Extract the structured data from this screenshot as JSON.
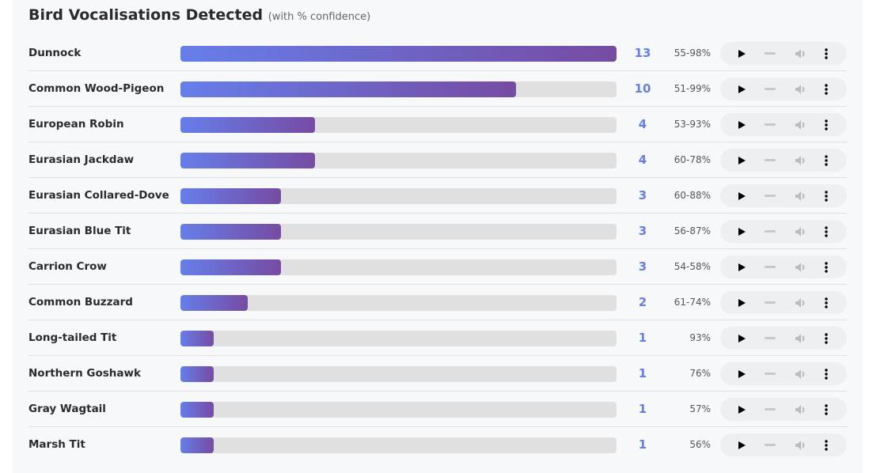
{
  "title": "Bird Vocalisations Detected",
  "subtitle": "(with % confidence)",
  "colors": {
    "bar_start": "#667eea",
    "bar_end": "#764ba2",
    "count": "#667eea"
  },
  "max_count": 13,
  "birds": [
    {
      "name": "Dunnock",
      "count": 13,
      "confidence": "55-98%"
    },
    {
      "name": "Common Wood-Pigeon",
      "count": 10,
      "confidence": "51-99%"
    },
    {
      "name": "European Robin",
      "count": 4,
      "confidence": "53-93%"
    },
    {
      "name": "Eurasian Jackdaw",
      "count": 4,
      "confidence": "60-78%"
    },
    {
      "name": "Eurasian Collared-Dove",
      "count": 3,
      "confidence": "60-88%"
    },
    {
      "name": "Eurasian Blue Tit",
      "count": 3,
      "confidence": "56-87%"
    },
    {
      "name": "Carrion Crow",
      "count": 3,
      "confidence": "54-58%"
    },
    {
      "name": "Common Buzzard",
      "count": 2,
      "confidence": "61-74%"
    },
    {
      "name": "Long-tailed Tit",
      "count": 1,
      "confidence": "93%"
    },
    {
      "name": "Northern Goshawk",
      "count": 1,
      "confidence": "76%"
    },
    {
      "name": "Gray Wagtail",
      "count": 1,
      "confidence": "57%"
    },
    {
      "name": "Marsh Tit",
      "count": 1,
      "confidence": "56%"
    }
  ]
}
